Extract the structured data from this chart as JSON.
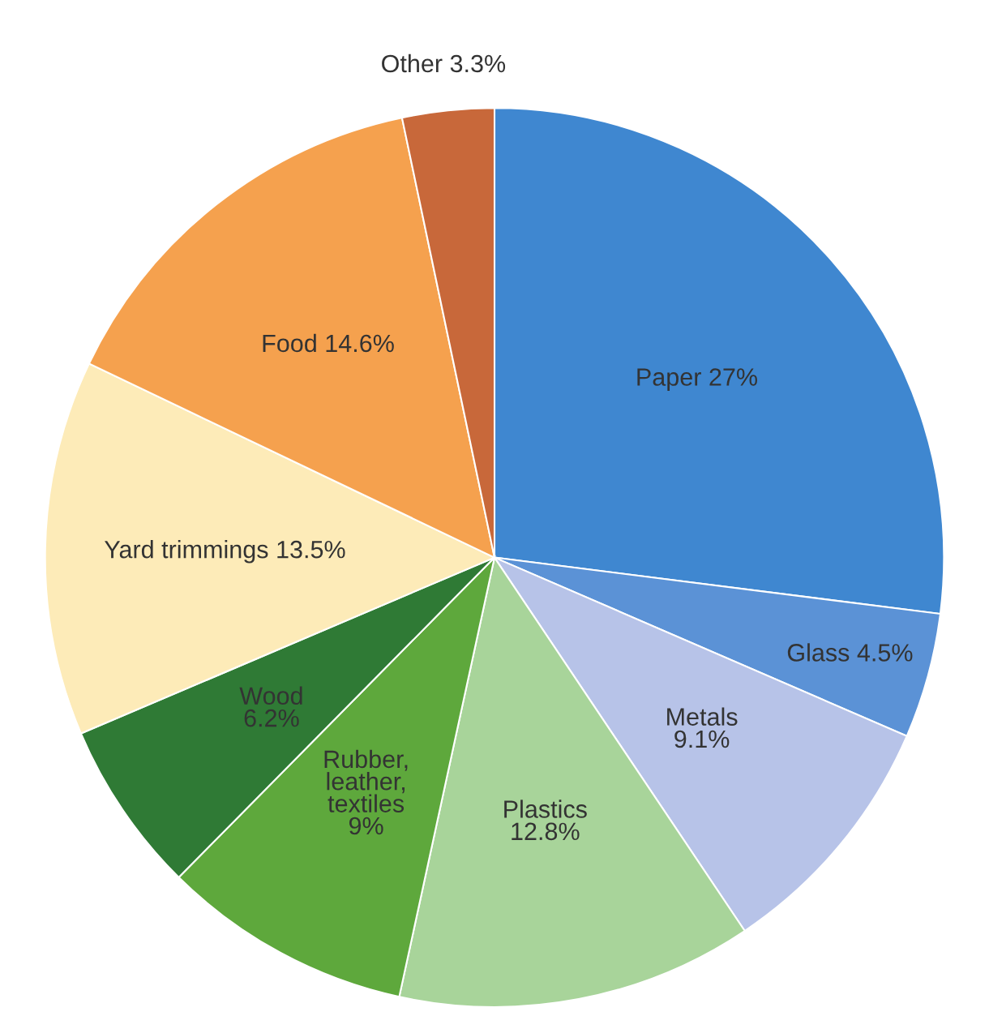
{
  "chart_data": {
    "type": "pie",
    "categories": [
      "Paper",
      "Glass",
      "Metals",
      "Plastics",
      "Rubber,\nleather,\ntextiles",
      "Wood",
      "Yard trimmings",
      "Food",
      "Other"
    ],
    "values": [
      27,
      4.5,
      9.1,
      12.8,
      9,
      6.2,
      13.5,
      14.6,
      3.3
    ],
    "value_labels": [
      "27%",
      "4.5%",
      "9.1%",
      "12.8%",
      "9%",
      "6.2%",
      "13.5%",
      "14.6%",
      "3.3%"
    ],
    "colors": [
      "#3f87d0",
      "#5b92d6",
      "#b7c3e8",
      "#a8d49a",
      "#5ea83c",
      "#2f7a35",
      "#fdebb8",
      "#f5a14e",
      "#c8683a"
    ]
  }
}
